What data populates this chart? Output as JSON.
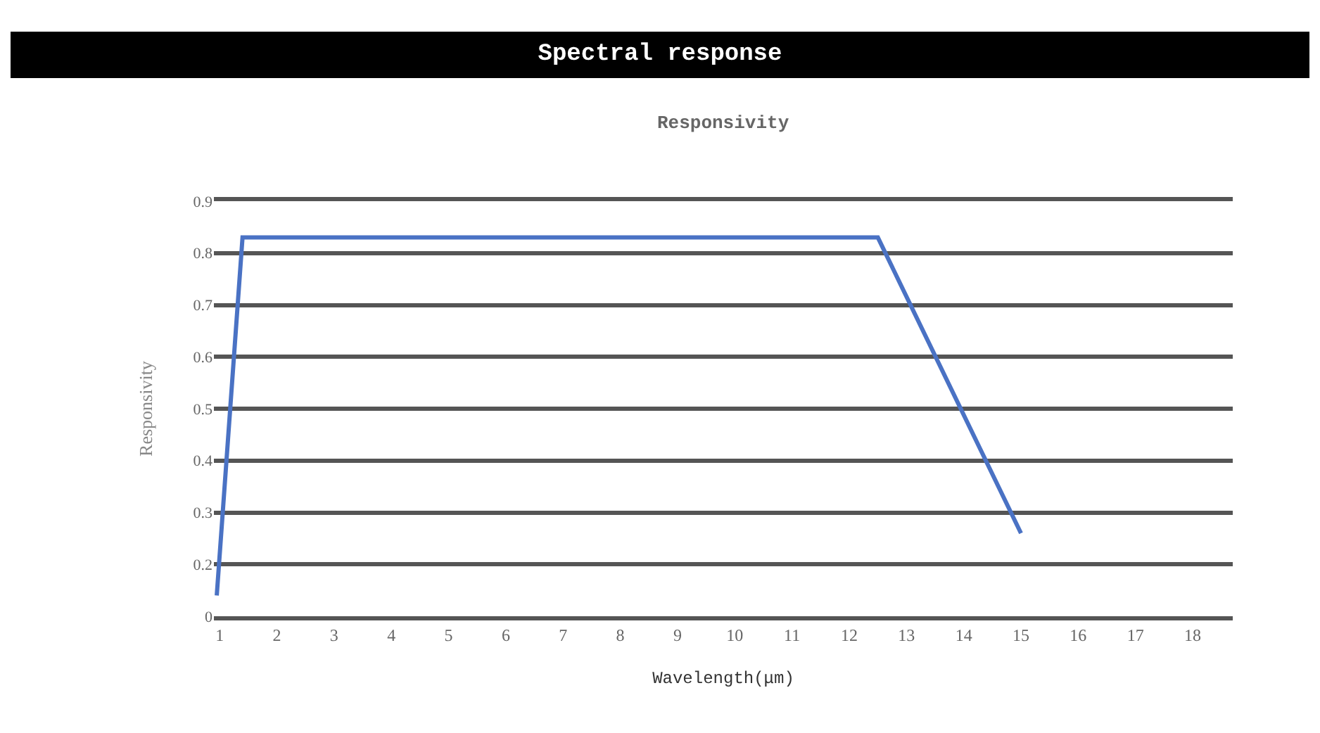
{
  "chart_data": {
    "type": "line",
    "title": "Spectral response",
    "subtitle": "Responsivity",
    "xlabel": "Wavelength(μm)",
    "ylabel": "Responsivity",
    "x": [
      0.95,
      1.4,
      12.5,
      15
    ],
    "series": [
      {
        "color": "#4a72c4",
        "values": [
          0.14,
          0.83,
          0.83,
          0.26
        ]
      }
    ],
    "xlim": [
      0.9,
      18.7
    ],
    "xticks": [
      1,
      2,
      3,
      4,
      5,
      6,
      7,
      8,
      9,
      10,
      11,
      12,
      13,
      14,
      15,
      16,
      17,
      18
    ],
    "ylim": [
      0.1,
      0.9
    ],
    "yticks": [
      {
        "value": 0.1,
        "label": "0"
      },
      0.2,
      0.3,
      0.4,
      0.5,
      0.6,
      0.7,
      0.8,
      0.9
    ],
    "grid": "y",
    "marker": "none",
    "line_style": "solid"
  }
}
